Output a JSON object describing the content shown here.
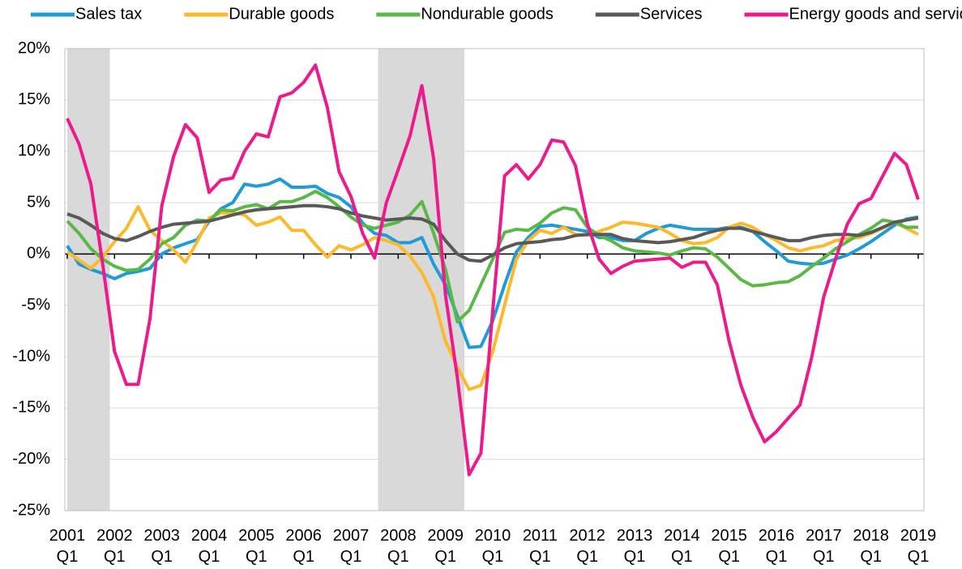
{
  "chart_data": {
    "type": "line",
    "categories": [
      "2001 Q1",
      null,
      null,
      null,
      "2002 Q1",
      null,
      null,
      null,
      "2003 Q1",
      null,
      null,
      null,
      "2004 Q1",
      null,
      null,
      null,
      "2005 Q1",
      null,
      null,
      null,
      "2006 Q1",
      null,
      null,
      null,
      "2007 Q1",
      null,
      null,
      null,
      "2008 Q1",
      null,
      null,
      null,
      "2009 Q1",
      null,
      null,
      null,
      "2010 Q1",
      null,
      null,
      null,
      "2011 Q1",
      null,
      null,
      null,
      "2012 Q1",
      null,
      null,
      null,
      "2013 Q1",
      null,
      null,
      null,
      "2014 Q1",
      null,
      null,
      null,
      "2015 Q1",
      null,
      null,
      null,
      "2016 Q1",
      null,
      null,
      null,
      "2017 Q1",
      null,
      null,
      null,
      "2018 Q1",
      null,
      null,
      null,
      "2019 Q1"
    ],
    "recession_shading": [
      [
        0,
        3.6
      ],
      [
        26.3,
        33.6
      ]
    ],
    "series": [
      {
        "name": "Sales tax",
        "color": "#1f9bd7",
        "values": [
          0.8,
          -1.0,
          -1.5,
          -1.9,
          -2.4,
          -1.9,
          -1.7,
          -1.4,
          0.0,
          0.6,
          1.0,
          1.4,
          3.2,
          4.4,
          5.0,
          6.8,
          6.6,
          6.8,
          7.3,
          6.5,
          6.5,
          6.6,
          5.9,
          5.5,
          4.6,
          3.0,
          2.0,
          1.8,
          1.1,
          1.1,
          1.6,
          -1.0,
          -3.0,
          -6.0,
          -9.1,
          -9.0,
          -6.5,
          -3.0,
          0.2,
          1.6,
          2.7,
          2.8,
          2.6,
          2.4,
          2.2,
          1.6,
          1.6,
          1.3,
          1.3,
          2.0,
          2.5,
          2.8,
          2.6,
          2.4,
          2.4,
          2.4,
          2.6,
          2.6,
          2.2,
          1.2,
          0.3,
          -0.7,
          -0.9,
          -1.0,
          -0.9,
          -0.5,
          -0.1,
          0.5,
          1.2,
          2.0,
          2.8,
          3.4,
          3.6
        ]
      },
      {
        "name": "Durable goods",
        "color": "#fdb92b",
        "values": [
          0.2,
          -0.6,
          -1.4,
          -0.3,
          1.2,
          2.5,
          4.6,
          2.3,
          1.3,
          0.4,
          -0.8,
          1.2,
          3.5,
          4.0,
          4.0,
          3.8,
          2.8,
          3.1,
          3.6,
          2.3,
          2.3,
          0.9,
          -0.3,
          0.8,
          0.4,
          0.9,
          1.6,
          1.3,
          0.9,
          -0.2,
          -1.8,
          -4.2,
          -8.5,
          -11.0,
          -13.2,
          -12.8,
          -9.5,
          -5.0,
          -0.5,
          1.3,
          2.3,
          2.0,
          2.6,
          1.9,
          1.8,
          2.2,
          2.6,
          3.1,
          3.0,
          2.8,
          2.6,
          2.0,
          1.3,
          1.0,
          1.1,
          1.6,
          2.6,
          3.0,
          2.6,
          1.9,
          1.3,
          0.6,
          0.3,
          0.6,
          0.8,
          1.3,
          1.5,
          1.6,
          2.0,
          2.5,
          3.1,
          2.5,
          1.9
        ]
      },
      {
        "name": "Nondurable goods",
        "color": "#5ab946",
        "values": [
          3.2,
          2.0,
          0.5,
          -0.5,
          -1.2,
          -1.6,
          -1.5,
          -0.5,
          1.0,
          1.6,
          2.8,
          3.3,
          3.2,
          4.3,
          4.2,
          4.6,
          4.8,
          4.4,
          5.1,
          5.1,
          5.5,
          6.1,
          5.5,
          4.6,
          3.6,
          2.8,
          2.5,
          2.8,
          3.1,
          3.8,
          5.1,
          2.0,
          -1.5,
          -6.6,
          -5.5,
          -3.0,
          -0.5,
          2.1,
          2.4,
          2.3,
          3.0,
          4.0,
          4.5,
          4.3,
          2.6,
          1.8,
          1.3,
          0.6,
          0.3,
          0.2,
          0.1,
          -0.1,
          0.3,
          0.6,
          0.5,
          -0.3,
          -1.4,
          -2.5,
          -3.1,
          -3.0,
          -2.8,
          -2.7,
          -2.1,
          -1.2,
          -0.4,
          0.5,
          1.2,
          1.9,
          2.5,
          3.3,
          3.1,
          2.6,
          2.6
        ]
      },
      {
        "name": "Services",
        "color": "#595959",
        "values": [
          3.9,
          3.5,
          2.8,
          2.0,
          1.5,
          1.3,
          1.7,
          2.2,
          2.6,
          2.9,
          3.0,
          3.1,
          3.2,
          3.5,
          3.8,
          4.1,
          4.3,
          4.4,
          4.5,
          4.6,
          4.7,
          4.7,
          4.6,
          4.4,
          4.0,
          3.7,
          3.5,
          3.3,
          3.4,
          3.5,
          3.4,
          2.9,
          1.3,
          0.0,
          -0.6,
          -0.7,
          -0.1,
          0.6,
          1.0,
          1.1,
          1.2,
          1.4,
          1.5,
          1.8,
          1.9,
          1.9,
          1.9,
          1.5,
          1.3,
          1.2,
          1.1,
          1.2,
          1.4,
          1.6,
          2.0,
          2.3,
          2.5,
          2.5,
          2.2,
          1.9,
          1.6,
          1.3,
          1.3,
          1.6,
          1.8,
          1.9,
          1.9,
          1.8,
          2.1,
          2.6,
          3.1,
          3.3,
          3.5
        ]
      },
      {
        "name": "Energy goods and services",
        "color": "#ec1a8c",
        "values": [
          13.2,
          10.7,
          6.8,
          -1.0,
          -9.5,
          -12.7,
          -12.7,
          -6.3,
          4.7,
          9.5,
          12.6,
          11.3,
          6.0,
          7.2,
          7.4,
          10.0,
          11.7,
          11.4,
          15.3,
          15.7,
          16.7,
          18.4,
          14.3,
          8.0,
          5.6,
          2.0,
          -0.4,
          5.0,
          8.2,
          11.5,
          16.4,
          9.3,
          -4.0,
          -12.0,
          -21.5,
          -19.4,
          -5.5,
          7.6,
          8.7,
          7.3,
          8.7,
          11.1,
          10.9,
          8.6,
          3.0,
          -0.5,
          -1.9,
          -1.2,
          -0.7,
          -0.6,
          -0.5,
          -0.4,
          -1.3,
          -0.8,
          -0.8,
          -3.0,
          -8.5,
          -12.8,
          -15.9,
          -18.3,
          -17.3,
          -16.0,
          -14.7,
          -10.0,
          -4.2,
          -0.5,
          2.9,
          4.9,
          5.4,
          7.6,
          9.8,
          8.7,
          5.3
        ]
      }
    ],
    "ylim": [
      -25,
      20
    ],
    "yticks": [
      {
        "value": -25,
        "label": "-25%"
      },
      {
        "value": -20,
        "label": "-20%"
      },
      {
        "value": -15,
        "label": "-15%"
      },
      {
        "value": -10,
        "label": "-10%"
      },
      {
        "value": -5,
        "label": "-5%"
      },
      {
        "value": 0,
        "label": "0%"
      },
      {
        "value": 5,
        "label": "5%"
      },
      {
        "value": 10,
        "label": "10%"
      },
      {
        "value": 15,
        "label": "15%"
      },
      {
        "value": 20,
        "label": "20%"
      }
    ],
    "grid": true,
    "legend": "top"
  }
}
